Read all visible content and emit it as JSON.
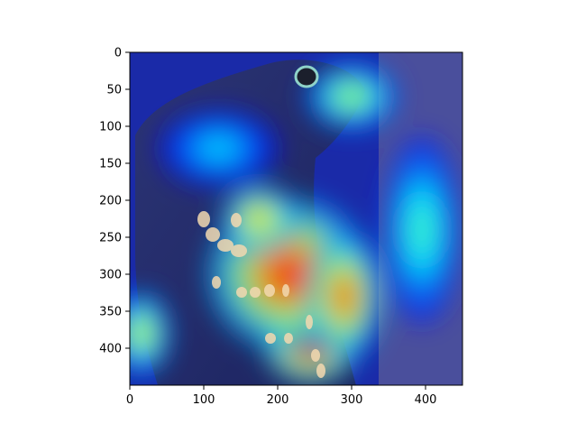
{
  "chart_data": {
    "type": "heatmap",
    "title": "",
    "xlabel": "",
    "ylabel": "",
    "xlim": [
      0,
      450
    ],
    "ylim": [
      450,
      0
    ],
    "x_ticks": [
      0,
      100,
      200,
      300,
      400
    ],
    "y_ticks": [
      0,
      50,
      100,
      150,
      200,
      250,
      300,
      350,
      400
    ],
    "x_tick_labels": [
      "0",
      "100",
      "200",
      "300",
      "400"
    ],
    "y_tick_labels": [
      "0",
      "50",
      "100",
      "150",
      "200",
      "250",
      "300",
      "350",
      "400"
    ],
    "grid": false,
    "colormap": "jet",
    "overlay_alpha": 0.5,
    "background_image": "photo of a dog with an attention heatmap overlay",
    "heatmap_regions": [
      {
        "x": 245,
        "y": 395,
        "rx": 55,
        "ry": 45,
        "intensity": 1.0
      },
      {
        "x": 215,
        "y": 300,
        "rx": 95,
        "ry": 90,
        "intensity": 0.85
      },
      {
        "x": 175,
        "y": 225,
        "rx": 45,
        "ry": 40,
        "intensity": 0.7
      },
      {
        "x": 290,
        "y": 330,
        "rx": 45,
        "ry": 75,
        "intensity": 0.8
      },
      {
        "x": 395,
        "y": 240,
        "rx": 45,
        "ry": 110,
        "intensity": 0.45
      },
      {
        "x": 15,
        "y": 380,
        "rx": 35,
        "ry": 50,
        "intensity": 0.6
      },
      {
        "x": 300,
        "y": 60,
        "rx": 55,
        "ry": 40,
        "intensity": 0.55
      },
      {
        "x": 120,
        "y": 130,
        "rx": 70,
        "ry": 45,
        "intensity": 0.35
      }
    ]
  }
}
